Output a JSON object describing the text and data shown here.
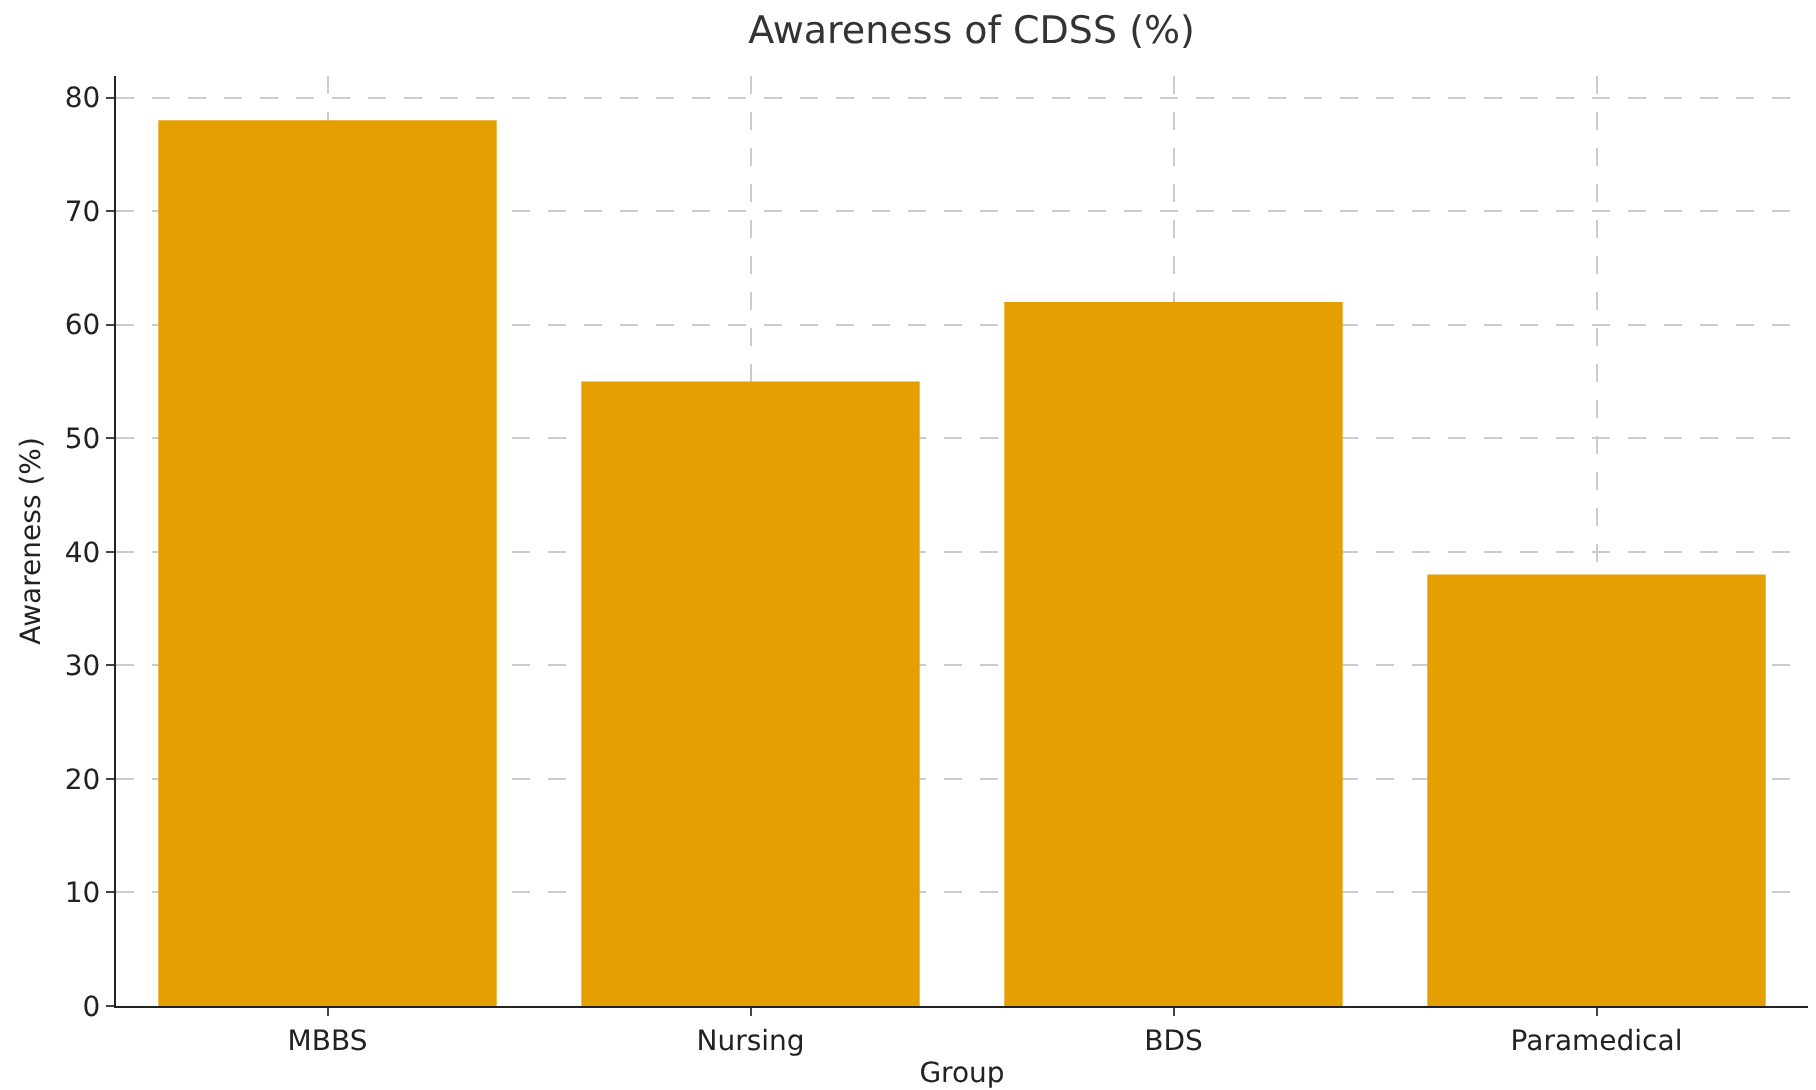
{
  "chart_data": {
    "type": "bar",
    "title": "Awareness of CDSS (%)",
    "xlabel": "Group",
    "ylabel": "Awareness (%)",
    "categories": [
      "MBBS",
      "Nursing",
      "BDS",
      "Paramedical"
    ],
    "values": [
      78,
      55,
      62,
      38
    ],
    "color": "#e69f00",
    "ylim": [
      0,
      81.9
    ],
    "yticks": [
      0,
      10,
      20,
      30,
      40,
      50,
      60,
      70,
      80
    ],
    "grid": true
  }
}
